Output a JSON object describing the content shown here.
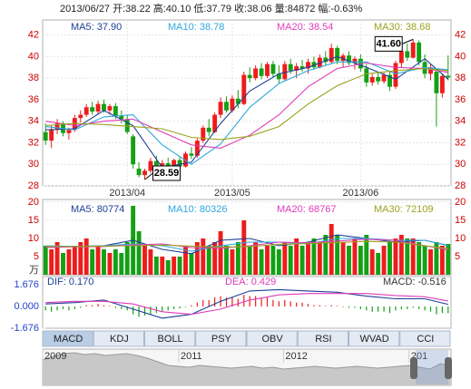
{
  "header": "2013/06/27 开:38.22 高:40.10 低:37.79 收:38.06 量:84872 幅:-0.63%",
  "chart_data": [
    {
      "type": "candlestick",
      "open": [
        33.0,
        32.2,
        33.2,
        33.8,
        32.9,
        33.2,
        34.3,
        34.6,
        35.3,
        34.9,
        35.6,
        35.0,
        35.4,
        34.5,
        34.2,
        32.6,
        29.6,
        29.0,
        29.4,
        30.3,
        29.9,
        30.1,
        29.7,
        30.4,
        29.8,
        31.0,
        30.8,
        32.2,
        33.4,
        33.0,
        34.6,
        35.8,
        35.0,
        36.1,
        35.6,
        38.3,
        38.0,
        38.9,
        38.2,
        39.3,
        38.4,
        37.9,
        39.3,
        38.7,
        39.1,
        38.9,
        39.5,
        39.0,
        39.9,
        39.5,
        40.8,
        39.6,
        40.1,
        39.4,
        39.8,
        38.9,
        37.6,
        38.1,
        37.7,
        38.3,
        37.2,
        39.4,
        40.5,
        39.9,
        41.3,
        39.5,
        38.4,
        38.6,
        36.6,
        38.22
      ],
      "high": [
        33.8,
        33.6,
        34.2,
        34.0,
        33.4,
        34.6,
        35.0,
        35.6,
        35.8,
        35.9,
        36.0,
        35.6,
        35.7,
        35.0,
        34.6,
        32.8,
        30.2,
        29.6,
        30.6,
        30.8,
        30.4,
        30.6,
        30.5,
        30.7,
        31.2,
        31.6,
        32.4,
        33.6,
        34.2,
        34.8,
        36.2,
        36.3,
        36.4,
        36.9,
        38.6,
        39.0,
        39.2,
        39.4,
        39.5,
        39.6,
        39.2,
        39.6,
        39.8,
        39.4,
        39.7,
        39.8,
        40.0,
        40.2,
        40.5,
        41.2,
        41.0,
        40.3,
        40.5,
        40.0,
        40.2,
        39.3,
        38.4,
        38.6,
        38.5,
        38.6,
        39.6,
        40.8,
        41.2,
        41.6,
        41.5,
        40.2,
        39.3,
        38.8,
        38.4,
        40.1
      ],
      "low": [
        31.8,
        31.5,
        32.8,
        32.6,
        32.3,
        33.0,
        33.9,
        34.4,
        34.6,
        34.7,
        34.8,
        34.6,
        34.2,
        33.8,
        32.8,
        29.6,
        28.8,
        28.59,
        29.2,
        29.7,
        29.3,
        29.5,
        29.4,
        29.6,
        29.7,
        30.5,
        30.6,
        32.0,
        32.6,
        32.9,
        34.3,
        34.8,
        34.8,
        35.2,
        35.5,
        37.6,
        37.8,
        37.9,
        38.0,
        38.1,
        37.5,
        37.8,
        38.4,
        38.0,
        38.6,
        38.4,
        38.8,
        38.9,
        39.2,
        39.4,
        39.3,
        39.0,
        39.2,
        38.8,
        38.6,
        37.2,
        37.3,
        37.4,
        37.5,
        36.8,
        37.0,
        39.0,
        39.6,
        39.8,
        39.2,
        38.0,
        37.8,
        33.5,
        36.2,
        37.79
      ],
      "close": [
        32.2,
        33.2,
        33.8,
        32.9,
        33.2,
        34.3,
        34.6,
        35.3,
        34.9,
        35.6,
        35.0,
        35.4,
        34.5,
        34.2,
        33.0,
        30.0,
        29.0,
        29.4,
        30.3,
        29.9,
        30.1,
        29.7,
        30.4,
        29.8,
        31.0,
        30.8,
        32.2,
        33.4,
        33.0,
        34.6,
        35.8,
        35.0,
        36.1,
        35.6,
        38.3,
        38.0,
        38.9,
        38.2,
        39.3,
        38.4,
        37.9,
        39.3,
        38.7,
        39.1,
        38.9,
        39.5,
        39.0,
        39.9,
        39.5,
        40.8,
        39.6,
        40.1,
        39.4,
        39.8,
        38.9,
        37.6,
        38.1,
        37.7,
        38.3,
        37.2,
        39.4,
        40.5,
        39.9,
        41.3,
        39.5,
        38.4,
        39.0,
        36.6,
        38.2,
        38.06
      ],
      "up_color": "#ee1c1c",
      "down_color": "#14a014",
      "ylim": [
        28,
        43.4
      ],
      "yticks": [
        28,
        30,
        32,
        34,
        36,
        38,
        40,
        42
      ],
      "grid": true,
      "xticks": [
        {
          "value": 14,
          "label": "2013/04"
        },
        {
          "value": 32,
          "label": "2013/05"
        },
        {
          "value": 54,
          "label": "2013/06"
        }
      ],
      "ma": {
        "x": [
          0,
          5,
          10,
          15,
          20,
          25,
          30,
          35,
          40,
          45,
          50,
          55,
          60,
          65,
          69
        ],
        "series": [
          {
            "name": "MA5: 37.90",
            "color": "#1c3f95",
            "values": [
              33.2,
              33.3,
              35.0,
              33.6,
              29.7,
              30.2,
              33.8,
              36.8,
              38.4,
              39.0,
              40.0,
              39.0,
              37.9,
              39.8,
              37.9
            ]
          },
          {
            "name": "MA10: 38.78",
            "color": "#2fa8dc",
            "values": [
              33.5,
              33.2,
              34.4,
              34.6,
              31.8,
              30.0,
              31.9,
              35.3,
              37.5,
              38.7,
              39.5,
              39.5,
              38.4,
              39.0,
              38.78
            ]
          },
          {
            "name": "MA20: 38.54",
            "color": "#e03cb8",
            "values": [
              34.0,
              33.6,
              34.0,
              34.2,
              33.0,
              31.8,
              31.5,
              32.7,
              34.6,
              37.2,
              38.9,
              39.4,
              39.0,
              38.9,
              38.54
            ]
          },
          {
            "name": "MA30: 38.68",
            "color": "#9aa21c",
            "values": [
              33.6,
              33.8,
              33.7,
              33.5,
              33.3,
              32.5,
              32.3,
              32.6,
              33.5,
              35.6,
              37.3,
              38.4,
              38.7,
              38.9,
              38.68
            ]
          }
        ]
      },
      "annotations": [
        {
          "index": 63,
          "value": 41.6,
          "label": "41.60"
        },
        {
          "index": 17,
          "value": 28.59,
          "label": "28.59"
        }
      ]
    },
    {
      "type": "volume",
      "values": [
        8,
        7,
        9,
        6,
        7,
        8,
        9,
        10,
        7,
        8,
        7,
        6,
        7,
        6,
        9,
        19,
        12,
        8,
        7,
        5,
        5,
        4,
        5,
        5,
        8,
        6,
        9,
        10,
        8,
        9,
        12,
        8,
        7,
        9,
        15,
        8,
        9,
        7,
        8,
        8,
        7,
        9,
        8,
        10,
        8,
        9,
        10,
        9,
        11,
        14,
        11,
        9,
        8,
        10,
        8,
        11,
        7,
        6,
        8,
        9,
        10,
        11,
        10,
        10,
        9,
        8,
        7,
        9,
        8,
        8.49
      ],
      "unit": "万",
      "ylim": [
        0,
        20.75
      ],
      "yticks": [
        5,
        10,
        15,
        20
      ],
      "grid": true,
      "ma": {
        "x": [
          0,
          5,
          10,
          15,
          20,
          25,
          30,
          35,
          40,
          45,
          50,
          55,
          60,
          65,
          69
        ],
        "series": [
          {
            "name": "MA5: 80774",
            "color": "#1c3f95",
            "values": [
              7.5,
              7.8,
              8,
              9.5,
              7,
              5.8,
              9.5,
              10,
              8,
              9,
              11,
              10,
              9,
              9.5,
              8.08
            ]
          },
          {
            "name": "MA10: 80326",
            "color": "#2fa8dc",
            "values": [
              8,
              7.8,
              8,
              8.5,
              8,
              6.5,
              8,
              9,
              9,
              8.5,
              10,
              10,
              9.5,
              9.5,
              8.03
            ]
          },
          {
            "name": "MA20: 68767",
            "color": "#e03cb8",
            "values": [
              7.5,
              7.7,
              7.8,
              8.2,
              8.5,
              7.5,
              7.3,
              8,
              9,
              8.8,
              9.3,
              9.8,
              9.5,
              8,
              6.88
            ]
          },
          {
            "name": "MA30: 72109",
            "color": "#9aa21c",
            "values": [
              7.8,
              7.8,
              7.9,
              8,
              8.2,
              7.9,
              7.6,
              7.8,
              8.4,
              8.6,
              8.9,
              9.2,
              9,
              8,
              7.21
            ]
          }
        ]
      }
    },
    {
      "type": "macd",
      "ylim": [
        -1.676,
        2.31
      ],
      "yticks": [
        1.676,
        {
          "value": 0,
          "label": "0.000"
        },
        -1.676
      ],
      "histogram": {
        "name": "MACD: -0.516",
        "up_color": "#ee1c1c",
        "down_color": "#14a014",
        "values": [
          -0.3,
          -0.4,
          -0.3,
          -0.2,
          -0.3,
          -0.2,
          -0.1,
          0.1,
          0.1,
          0.2,
          0.1,
          0.05,
          -0.1,
          -0.2,
          -0.3,
          -0.6,
          -0.8,
          -0.7,
          -0.6,
          -0.5,
          -0.4,
          -0.3,
          -0.2,
          -0.15,
          -0.05,
          0.1,
          0.3,
          0.5,
          0.5,
          0.7,
          0.8,
          0.7,
          0.7,
          0.6,
          0.9,
          0.8,
          0.8,
          0.7,
          0.7,
          0.5,
          0.4,
          0.5,
          0.4,
          0.3,
          0.3,
          0.2,
          0.1,
          0.1,
          0.05,
          0.1,
          0.05,
          -0.05,
          -0.1,
          -0.1,
          -0.2,
          -0.3,
          -0.4,
          -0.4,
          -0.4,
          -0.5,
          -0.3,
          -0.2,
          -0.2,
          -0.1,
          -0.2,
          -0.3,
          -0.4,
          -0.6,
          -0.5,
          -0.516
        ]
      },
      "lines": {
        "x": [
          0,
          5,
          10,
          15,
          20,
          25,
          30,
          35,
          40,
          45,
          50,
          55,
          60,
          65,
          69
        ],
        "series": [
          {
            "name": "DIF: 0.170",
            "color": "#1c3f95",
            "values": [
              0.2,
              0.3,
              0.5,
              -0.2,
              -0.9,
              -0.6,
              0.4,
              1.2,
              1.3,
              1.2,
              1.1,
              0.8,
              0.6,
              0.6,
              0.17
            ]
          },
          {
            "name": "DEA: 0.429",
            "color": "#e03cb8",
            "values": [
              0.3,
              0.4,
              0.4,
              0.2,
              -0.4,
              -0.6,
              -0.2,
              0.5,
              0.9,
              1.0,
              1.0,
              1.0,
              0.85,
              0.75,
              0.429
            ]
          }
        ]
      }
    },
    {
      "type": "area",
      "color": "#c8c8c8",
      "ylim": [
        0,
        40
      ],
      "values": [
        28,
        32,
        35,
        36,
        34,
        35,
        33,
        34,
        35,
        33,
        30,
        26,
        22,
        21,
        20,
        22,
        21,
        20,
        19,
        20,
        21,
        19,
        20,
        18,
        19,
        20,
        21,
        20,
        19,
        20,
        21,
        20,
        19,
        20,
        21,
        22,
        20,
        18,
        24,
        21
      ],
      "xticks": [
        {
          "value": 0,
          "label": "2009"
        },
        {
          "value": 13,
          "label": "2011"
        },
        {
          "value": 23,
          "label": "2012"
        },
        {
          "value": 35,
          "label": "201"
        }
      ]
    }
  ],
  "tabs": {
    "items": [
      "MACD",
      "KDJ",
      "BOLL",
      "PSY",
      "OBV",
      "RSI",
      "WVAD",
      "CCI"
    ],
    "selected": 0
  }
}
